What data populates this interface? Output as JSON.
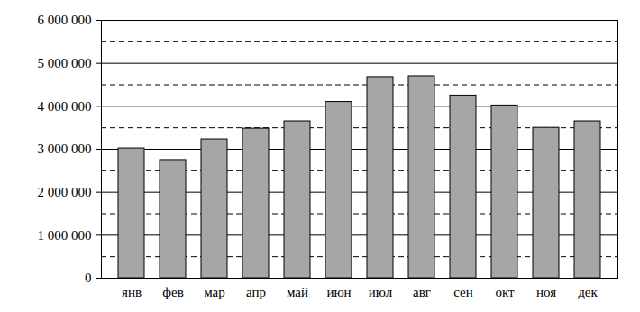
{
  "chart_data": {
    "type": "bar",
    "categories": [
      "янв",
      "фев",
      "мар",
      "апр",
      "май",
      "июн",
      "июл",
      "авг",
      "сен",
      "окт",
      "ноя",
      "дек"
    ],
    "values": [
      3020000,
      2750000,
      3230000,
      3480000,
      3650000,
      4100000,
      4680000,
      4700000,
      4250000,
      4020000,
      3500000,
      3650000
    ],
    "color": "#a6a6a6",
    "ylim": [
      0,
      6000000
    ],
    "yticks": [
      0,
      {
        "value": 1000000,
        "label": "1 000 000"
      },
      {
        "value": 2000000,
        "label": "2 000 000"
      },
      {
        "value": 3000000,
        "label": "3 000 000"
      },
      {
        "value": 4000000,
        "label": "4 000 000"
      },
      {
        "value": 5000000,
        "label": "5 000 000"
      },
      {
        "value": 6000000,
        "label": "6 000 000"
      }
    ],
    "grid": true
  }
}
